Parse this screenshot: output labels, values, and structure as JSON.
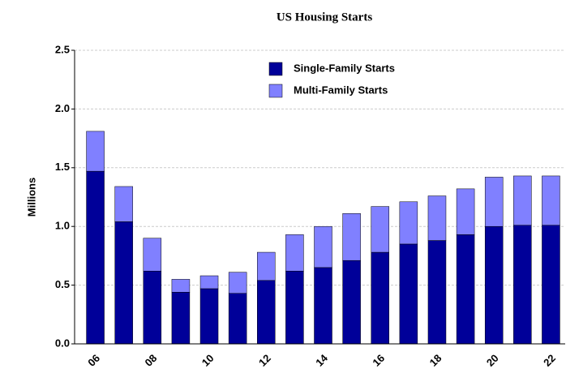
{
  "chart_data": {
    "type": "stacked_bar",
    "title": "US Housing Starts",
    "y_label": "Millions",
    "categories": [
      "06",
      null,
      "08",
      null,
      "10",
      null,
      "12",
      null,
      "14",
      null,
      "16",
      null,
      "18",
      null,
      "20",
      null,
      "22"
    ],
    "series": [
      {
        "name": "Single-Family Starts",
        "color": "#000099",
        "values": [
          1.47,
          1.04,
          0.62,
          0.44,
          0.47,
          0.43,
          0.54,
          0.62,
          0.65,
          0.71,
          0.78,
          0.85,
          0.88,
          0.93,
          1.0,
          1.01,
          1.01
        ]
      },
      {
        "name": "Multi-Family Starts",
        "color": "#8080ff",
        "values": [
          0.34,
          0.3,
          0.28,
          0.11,
          0.11,
          0.18,
          0.24,
          0.31,
          0.35,
          0.4,
          0.39,
          0.36,
          0.38,
          0.39,
          0.42,
          0.42,
          0.42
        ]
      }
    ],
    "ylim": [
      0,
      2.5
    ],
    "yticks": [
      {
        "value": 0,
        "label": "0.0"
      },
      0.5,
      {
        "value": 1,
        "label": "1.0"
      },
      1.5,
      {
        "value": 2,
        "label": "2.0"
      },
      2.5
    ],
    "grid": true,
    "legend": "top"
  }
}
